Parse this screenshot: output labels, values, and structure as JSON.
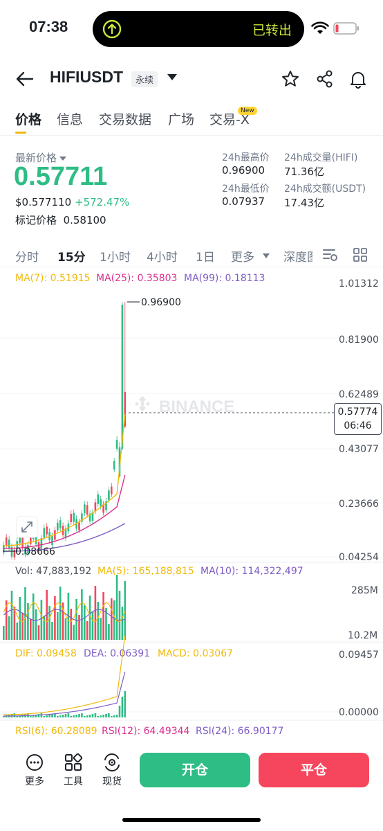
{
  "status": {
    "time": "07:38",
    "island_text": "已转出"
  },
  "header": {
    "symbol": "HIFIUSDT",
    "badge": "永续"
  },
  "tabs": [
    {
      "label": "价格"
    },
    {
      "label": "信息"
    },
    {
      "label": "交易数据"
    },
    {
      "label": "广场"
    },
    {
      "label": "交易-X"
    }
  ],
  "new_badge": "New",
  "price": {
    "label": "最新价格",
    "last": "0.57711",
    "usd": "$0.577110",
    "change": "+572.47%",
    "mark_label": "标记价格",
    "mark_value": "0.58100"
  },
  "stats": {
    "high_label": "24h最高价",
    "high": "0.96900",
    "low_label": "24h最低价",
    "low": "0.07937",
    "vol_label": "24h成交量(HIFI)",
    "vol": "71.36亿",
    "amt_label": "24h成交额(USDT)",
    "amt": "17.43亿"
  },
  "intervals": [
    "分时",
    "15分",
    "1小时",
    "4小时",
    "1日",
    "更多",
    "深度图"
  ],
  "chart": {
    "ma7": "MA(7): 0.51915",
    "ma25": "MA(25): 0.35803",
    "ma99": "MA(99): 0.18113",
    "y_ticks": [
      "1.01312",
      "0.81900",
      "0.62489",
      "0.43077",
      "0.23666",
      "0.04254"
    ],
    "high_marker": "0.96900",
    "low_marker": "0.08666",
    "current_price": "0.57774",
    "countdown": "06:46",
    "watermark": "BINANCE",
    "vol": "Vol: 47,883,192",
    "vol_ma5": "MA(5): 165,188,815",
    "vol_ma10": "MA(10): 114,322,497",
    "vol_ticks": [
      "285M",
      "10.2M"
    ],
    "dif": "DIF: 0.09458",
    "dea": "DEA: 0.06391",
    "macd": "MACD: 0.03067",
    "macd_ticks": [
      "0.09457",
      "0.00000"
    ],
    "rsi6": "RSI(6): 60.28089",
    "rsi12": "RSI(12): 64.49344",
    "rsi24": "RSI(24): 66.90177"
  },
  "bottom": {
    "more": "更多",
    "tools": "工具",
    "spot": "现货",
    "open": "开仓",
    "close": "平仓"
  },
  "colors": {
    "up": "#2ebd85",
    "down": "#f6465d",
    "ma7": "#f0b90b",
    "ma25": "#d9308f",
    "ma99": "#7d5cc6"
  }
}
